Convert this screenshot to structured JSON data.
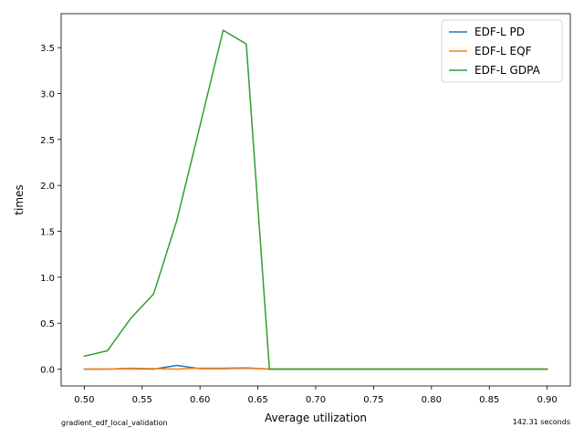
{
  "chart_data": {
    "type": "line",
    "title": "",
    "xlabel": "Average utilization",
    "ylabel": "times",
    "xlim": [
      0.48,
      0.92
    ],
    "ylim": [
      -0.184,
      3.87
    ],
    "xticks": [
      0.5,
      0.55,
      0.6,
      0.65,
      0.7,
      0.75,
      0.8,
      0.85,
      0.9
    ],
    "xtick_labels": [
      "0.50",
      "0.55",
      "0.60",
      "0.65",
      "0.70",
      "0.75",
      "0.80",
      "0.85",
      "0.90"
    ],
    "yticks": [
      0.0,
      0.5,
      1.0,
      1.5,
      2.0,
      2.5,
      3.0,
      3.5
    ],
    "ytick_labels": [
      "0.0",
      "0.5",
      "1.0",
      "1.5",
      "2.0",
      "2.5",
      "3.0",
      "3.5"
    ],
    "grid": false,
    "legend_position": "top-right",
    "x": [
      0.5,
      0.52,
      0.54,
      0.56,
      0.58,
      0.6,
      0.62,
      0.64,
      0.66,
      0.68,
      0.7,
      0.72,
      0.74,
      0.76,
      0.78,
      0.8,
      0.82,
      0.84,
      0.86,
      0.88,
      0.9
    ],
    "series": [
      {
        "name": "EDF-L PD",
        "color": "#1f77b4",
        "values": [
          0.0,
          0.0,
          0.005,
          0.0,
          0.04,
          0.005,
          0.005,
          0.01,
          0.0,
          0.0,
          0.0,
          0.0,
          0.0,
          0.0,
          0.0,
          0.0,
          0.0,
          0.0,
          0.0,
          0.0,
          0.0
        ]
      },
      {
        "name": "EDF-L EQF",
        "color": "#ff7f0e",
        "values": [
          0.0,
          0.0,
          0.01,
          0.005,
          0.0,
          0.01,
          0.01,
          0.015,
          0.0,
          0.0,
          0.0,
          0.0,
          0.0,
          0.0,
          0.0,
          0.0,
          0.0,
          0.0,
          0.0,
          0.0,
          0.0
        ]
      },
      {
        "name": "EDF-L GDPA",
        "color": "#2ca02c",
        "values": [
          0.14,
          0.2,
          0.55,
          0.82,
          1.62,
          2.65,
          3.69,
          3.54,
          0.0,
          0.0,
          0.0,
          0.0,
          0.0,
          0.0,
          0.0,
          0.0,
          0.0,
          0.0,
          0.0,
          0.0,
          0.0
        ]
      }
    ]
  },
  "footer": {
    "left_text": "gradient_edf_local_validation",
    "right_text": "142.31 seconds"
  }
}
